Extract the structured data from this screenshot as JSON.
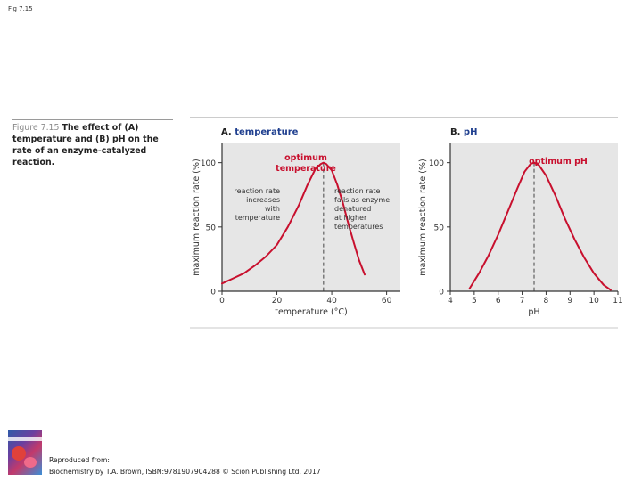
{
  "slide": {
    "label": "Fig 7.15"
  },
  "caption": {
    "fig_number": "Figure 7.15",
    "title": "The effect of (A) temperature and (B) pH on the rate of an enzyme-catalyzed reaction."
  },
  "colors": {
    "curve": "#c8102e",
    "panel_bg": "#e6e6e6",
    "header_blue": "#1f3f8f",
    "annotation_red": "#c8102e",
    "axis": "#333333"
  },
  "footer": {
    "line1": "Reproduced from:",
    "line2": "Biochemistry by T.A. Brown, ISBN:9781907904288 © Scion Publishing Ltd, 2017"
  },
  "chart_data": [
    {
      "type": "line",
      "panel_label": "A. temperature",
      "xlabel": "temperature (°C)",
      "ylabel": "maximum reaction rate (%)",
      "xlim": [
        0,
        65
      ],
      "ylim": [
        0,
        115
      ],
      "xticks": [
        0,
        20,
        40,
        60
      ],
      "yticks": [
        0,
        50,
        100
      ],
      "series": [
        {
          "x": [
            0,
            4,
            8,
            12,
            16,
            20,
            24,
            28,
            31,
            34,
            36,
            37,
            38,
            40,
            42,
            44,
            46,
            48,
            50,
            52
          ],
          "y": [
            6,
            10,
            14,
            20,
            27,
            36,
            50,
            67,
            82,
            95,
            99,
            100,
            99,
            94,
            83,
            69,
            53,
            38,
            24,
            13
          ]
        }
      ],
      "optimum_x": 37,
      "annotations": {
        "optimum": "optimum temperature",
        "left_note": [
          "reaction rate",
          "increases",
          "with",
          "temperature"
        ],
        "right_note": [
          "reaction rate",
          "falls as enzyme",
          "denatured",
          "at higher",
          "temperatures"
        ]
      }
    },
    {
      "type": "line",
      "panel_label": "B. pH",
      "xlabel": "pH",
      "ylabel": "maximum reaction rate (%)",
      "xlim": [
        4,
        11
      ],
      "ylim": [
        0,
        115
      ],
      "xticks": [
        4,
        5,
        6,
        7,
        8,
        9,
        10,
        11
      ],
      "yticks": [
        0,
        50,
        100
      ],
      "series": [
        {
          "x": [
            4.8,
            5.2,
            5.6,
            6.0,
            6.4,
            6.8,
            7.1,
            7.35,
            7.5,
            7.7,
            8.0,
            8.4,
            8.8,
            9.2,
            9.6,
            10.0,
            10.4,
            10.7
          ],
          "y": [
            2,
            14,
            28,
            44,
            62,
            80,
            93,
            99,
            100,
            98,
            90,
            74,
            56,
            40,
            26,
            14,
            5,
            1
          ]
        }
      ],
      "optimum_x": 7.5,
      "annotations": {
        "optimum": "optimum pH"
      }
    }
  ]
}
